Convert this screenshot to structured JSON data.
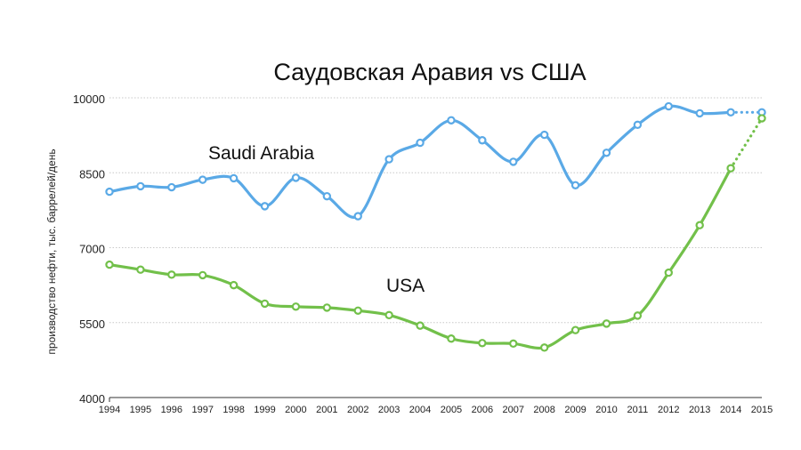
{
  "chart_data": {
    "type": "line",
    "title": "Саудовская Аравия vs США",
    "xlabel": "",
    "ylabel": "производство нефти, тыс. баррелей/день",
    "ylim": [
      4000,
      10000
    ],
    "yticks": [
      "4000",
      "5500",
      "7000",
      "8500",
      "10000"
    ],
    "grid": true,
    "x": [
      "1994",
      "1995",
      "1996",
      "1997",
      "1998",
      "1999",
      "2000",
      "2001",
      "2002",
      "2003",
      "2004",
      "2005",
      "2006",
      "2007",
      "2008",
      "2009",
      "2010",
      "2011",
      "2012",
      "2013",
      "2014",
      "2015"
    ],
    "series": [
      {
        "name": "Saudi Arabia",
        "color": "#5aa9e6",
        "values": [
          8120,
          8230,
          8210,
          8360,
          8390,
          7830,
          8400,
          8030,
          7630,
          8770,
          9100,
          9550,
          9150,
          8720,
          9260,
          8250,
          8900,
          9460,
          9830,
          9690,
          9710,
          9710
        ],
        "projected_from_index": 20
      },
      {
        "name": "USA",
        "color": "#72c04a",
        "values": [
          6660,
          6560,
          6460,
          6450,
          6250,
          5880,
          5820,
          5800,
          5740,
          5650,
          5440,
          5180,
          5090,
          5080,
          5000,
          5350,
          5480,
          5640,
          6500,
          7450,
          8590,
          9590
        ],
        "projected_from_index": 20
      }
    ]
  }
}
